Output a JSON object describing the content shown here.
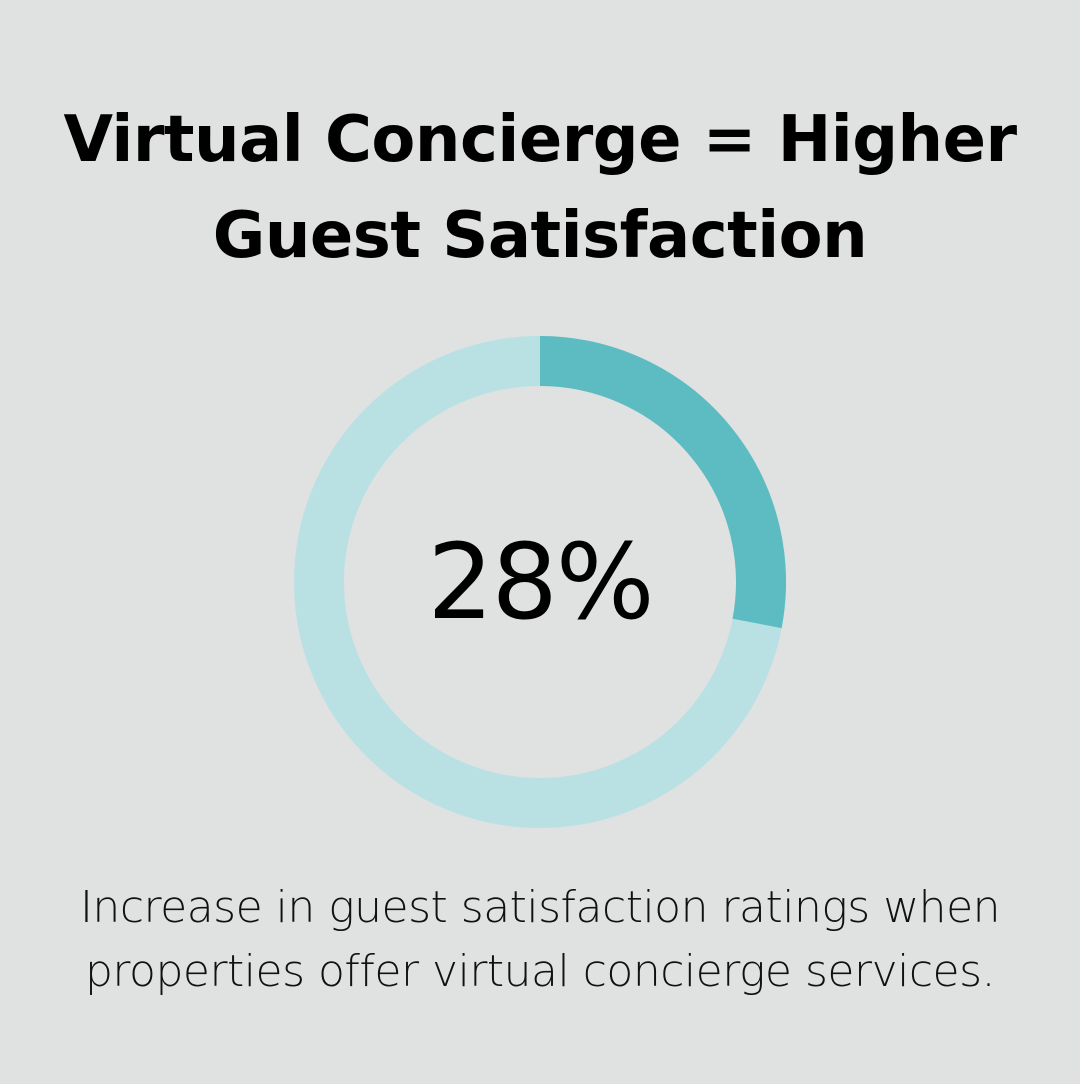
{
  "title": {
    "line1": "Virtual Concierge = Higher",
    "line2": "Guest Satisfaction"
  },
  "chart_data": {
    "type": "pie",
    "value": 28,
    "value_label": "28%",
    "max": 100,
    "colors": {
      "filled": "#5cbcc1",
      "track": "#b9e1e4",
      "background": "#e0e1e1"
    }
  },
  "caption": {
    "line1": "Increase in guest satisfaction ratings when",
    "line2": "properties offer virtual concierge services."
  }
}
